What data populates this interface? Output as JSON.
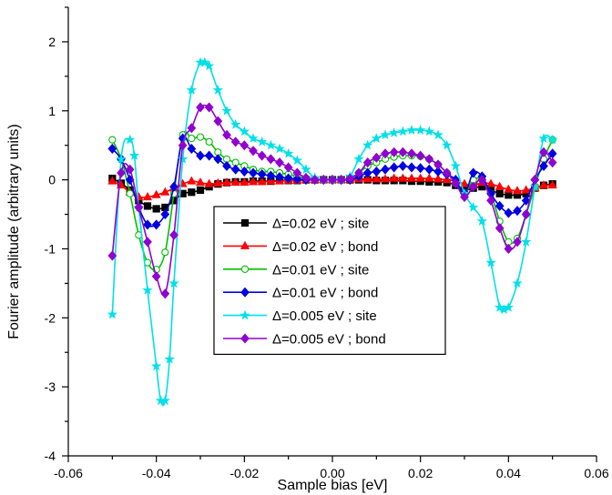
{
  "chart_data": {
    "type": "line",
    "title": "",
    "xlabel": "Sample bias [eV]",
    "ylabel": "Fourier amplitude (arbitrary units)",
    "xlim": [
      -0.06,
      0.06
    ],
    "ylim": [
      -4,
      2.5
    ],
    "xticks": [
      -0.06,
      -0.04,
      -0.02,
      0.0,
      0.02,
      0.04,
      0.06
    ],
    "xtick_labels": [
      "-0.06",
      "-0.04",
      "-0.02",
      "0.00",
      "0.02",
      "0.04",
      "0.06"
    ],
    "yticks": [
      -4,
      -3,
      -2,
      -1,
      0,
      1,
      2
    ],
    "ytick_labels": [
      "-4",
      "-3",
      "-2",
      "-1",
      "0",
      "1",
      "2"
    ],
    "grid": false,
    "legend_position": "bottom-center",
    "series": [
      {
        "name": "Δ=0.02 eV ; site",
        "color": "#000000",
        "marker": "square",
        "filled": true,
        "x": [
          -0.05,
          -0.048,
          -0.046,
          -0.044,
          -0.042,
          -0.04,
          -0.038,
          -0.036,
          -0.034,
          -0.032,
          -0.03,
          -0.028,
          -0.026,
          -0.024,
          -0.022,
          -0.02,
          -0.018,
          -0.016,
          -0.014,
          -0.012,
          -0.01,
          -0.008,
          -0.006,
          -0.004,
          -0.002,
          0.0,
          0.002,
          0.004,
          0.006,
          0.008,
          0.01,
          0.012,
          0.014,
          0.016,
          0.018,
          0.02,
          0.022,
          0.024,
          0.026,
          0.028,
          0.03,
          0.032,
          0.034,
          0.036,
          0.038,
          0.04,
          0.042,
          0.044,
          0.046,
          0.048,
          0.05
        ],
        "y": [
          0.02,
          -0.05,
          -0.15,
          -0.3,
          -0.38,
          -0.42,
          -0.4,
          -0.3,
          -0.2,
          -0.18,
          -0.15,
          -0.1,
          -0.06,
          -0.04,
          -0.03,
          -0.03,
          -0.02,
          -0.02,
          -0.02,
          -0.01,
          -0.01,
          -0.01,
          0.0,
          0.0,
          0.0,
          0.0,
          0.0,
          0.0,
          0.0,
          0.0,
          -0.01,
          -0.01,
          -0.01,
          -0.01,
          -0.02,
          -0.02,
          -0.03,
          -0.03,
          -0.04,
          -0.08,
          -0.15,
          -0.12,
          -0.1,
          -0.15,
          -0.2,
          -0.22,
          -0.22,
          -0.2,
          -0.12,
          -0.08,
          -0.06
        ]
      },
      {
        "name": "Δ=0.02 eV ; bond",
        "color": "#ff0000",
        "marker": "triangle",
        "filled": true,
        "x": [
          -0.05,
          -0.048,
          -0.046,
          -0.044,
          -0.042,
          -0.04,
          -0.038,
          -0.036,
          -0.034,
          -0.032,
          -0.03,
          -0.028,
          -0.026,
          -0.024,
          -0.022,
          -0.02,
          -0.018,
          -0.016,
          -0.014,
          -0.012,
          -0.01,
          -0.008,
          -0.006,
          -0.004,
          -0.002,
          0.0,
          0.002,
          0.004,
          0.006,
          0.008,
          0.01,
          0.012,
          0.014,
          0.016,
          0.018,
          0.02,
          0.022,
          0.024,
          0.026,
          0.028,
          0.03,
          0.032,
          0.034,
          0.036,
          0.038,
          0.04,
          0.042,
          0.044,
          0.046,
          0.048,
          0.05
        ],
        "y": [
          -0.02,
          -0.08,
          -0.18,
          -0.25,
          -0.25,
          -0.22,
          -0.18,
          -0.12,
          -0.06,
          -0.02,
          -0.04,
          -0.06,
          -0.05,
          -0.04,
          -0.04,
          -0.04,
          -0.03,
          -0.03,
          -0.02,
          -0.02,
          -0.01,
          -0.01,
          0.0,
          0.0,
          0.0,
          0.0,
          0.0,
          0.0,
          0.01,
          0.01,
          0.01,
          0.01,
          0.02,
          0.02,
          0.02,
          0.02,
          0.02,
          0.01,
          0.0,
          -0.02,
          -0.06,
          -0.08,
          -0.04,
          -0.06,
          -0.1,
          -0.14,
          -0.16,
          -0.15,
          -0.12,
          -0.08,
          -0.08
        ]
      },
      {
        "name": "Δ=0.01 eV ; site",
        "color": "#00c000",
        "marker": "circle",
        "filled": false,
        "x": [
          -0.05,
          -0.048,
          -0.046,
          -0.044,
          -0.042,
          -0.04,
          -0.038,
          -0.036,
          -0.034,
          -0.032,
          -0.03,
          -0.028,
          -0.026,
          -0.024,
          -0.022,
          -0.02,
          -0.018,
          -0.016,
          -0.014,
          -0.012,
          -0.01,
          -0.008,
          -0.006,
          -0.004,
          -0.002,
          0.0,
          0.002,
          0.004,
          0.006,
          0.008,
          0.01,
          0.012,
          0.014,
          0.016,
          0.018,
          0.02,
          0.022,
          0.024,
          0.026,
          0.028,
          0.03,
          0.032,
          0.034,
          0.036,
          0.038,
          0.04,
          0.042,
          0.044,
          0.046,
          0.048,
          0.05
        ],
        "y": [
          0.58,
          0.3,
          -0.2,
          -0.8,
          -1.2,
          -1.3,
          -1.05,
          -0.2,
          0.65,
          0.6,
          0.62,
          0.55,
          0.4,
          0.3,
          0.25,
          0.2,
          0.15,
          0.12,
          0.12,
          0.1,
          0.08,
          0.05,
          0.02,
          0.0,
          0.0,
          0.0,
          0.0,
          0.02,
          0.1,
          0.2,
          0.25,
          0.3,
          0.33,
          0.35,
          0.35,
          0.34,
          0.3,
          0.22,
          0.1,
          -0.05,
          -0.2,
          0.0,
          0.0,
          -0.2,
          -0.6,
          -0.9,
          -0.85,
          -0.5,
          -0.1,
          0.3,
          0.58
        ]
      },
      {
        "name": "Δ=0.01 eV ; bond",
        "color": "#0000e0",
        "marker": "diamond",
        "filled": true,
        "x": [
          -0.05,
          -0.048,
          -0.046,
          -0.044,
          -0.042,
          -0.04,
          -0.038,
          -0.036,
          -0.034,
          -0.032,
          -0.03,
          -0.028,
          -0.026,
          -0.024,
          -0.022,
          -0.02,
          -0.018,
          -0.016,
          -0.014,
          -0.012,
          -0.01,
          -0.008,
          -0.006,
          -0.004,
          -0.002,
          0.0,
          0.002,
          0.004,
          0.006,
          0.008,
          0.01,
          0.012,
          0.014,
          0.016,
          0.018,
          0.02,
          0.022,
          0.024,
          0.026,
          0.028,
          0.03,
          0.032,
          0.034,
          0.036,
          0.038,
          0.04,
          0.042,
          0.044,
          0.046,
          0.048,
          0.05
        ],
        "y": [
          0.45,
          0.3,
          0.0,
          -0.4,
          -0.65,
          -0.65,
          -0.5,
          -0.1,
          0.6,
          0.45,
          0.35,
          0.35,
          0.3,
          0.2,
          0.15,
          0.12,
          0.1,
          0.08,
          0.06,
          0.04,
          0.02,
          0.01,
          0.0,
          0.0,
          0.0,
          0.0,
          0.0,
          0.0,
          0.05,
          0.1,
          0.12,
          0.15,
          0.18,
          0.2,
          0.18,
          0.17,
          0.15,
          0.12,
          0.08,
          0.0,
          -0.2,
          0.1,
          0.05,
          -0.2,
          -0.38,
          -0.48,
          -0.45,
          -0.3,
          0.0,
          0.2,
          0.38
        ]
      },
      {
        "name": "Δ=0.005 eV ; site",
        "color": "#00e0e8",
        "marker": "star",
        "filled": true,
        "x": [
          -0.05,
          -0.048,
          -0.046,
          -0.045,
          -0.044,
          -0.042,
          -0.04,
          -0.039,
          -0.038,
          -0.037,
          -0.036,
          -0.034,
          -0.032,
          -0.03,
          -0.029,
          -0.028,
          -0.026,
          -0.024,
          -0.022,
          -0.02,
          -0.018,
          -0.016,
          -0.014,
          -0.012,
          -0.01,
          -0.008,
          -0.006,
          -0.004,
          -0.002,
          0.0,
          0.002,
          0.004,
          0.006,
          0.008,
          0.01,
          0.012,
          0.014,
          0.016,
          0.018,
          0.02,
          0.022,
          0.024,
          0.026,
          0.028,
          0.03,
          0.032,
          0.034,
          0.036,
          0.038,
          0.039,
          0.04,
          0.042,
          0.044,
          0.046,
          0.048,
          0.05
        ],
        "y": [
          -1.95,
          0.3,
          0.58,
          0.35,
          -0.4,
          -1.6,
          -2.7,
          -3.2,
          -3.2,
          -2.6,
          -1.5,
          0.3,
          1.3,
          1.7,
          1.7,
          1.65,
          1.3,
          1.0,
          0.8,
          0.7,
          0.6,
          0.55,
          0.5,
          0.45,
          0.38,
          0.28,
          0.15,
          0.03,
          0.0,
          0.0,
          0.0,
          0.05,
          0.3,
          0.5,
          0.6,
          0.65,
          0.68,
          0.7,
          0.72,
          0.72,
          0.7,
          0.65,
          0.5,
          0.2,
          -0.2,
          -0.4,
          -0.6,
          -1.2,
          -1.85,
          -1.88,
          -1.85,
          -1.5,
          -0.9,
          -0.1,
          0.6,
          0.58
        ]
      },
      {
        "name": "Δ=0.005 eV ; bond",
        "color": "#9000d0",
        "marker": "diamond",
        "filled": true,
        "x": [
          -0.05,
          -0.048,
          -0.046,
          -0.044,
          -0.042,
          -0.04,
          -0.038,
          -0.036,
          -0.034,
          -0.032,
          -0.03,
          -0.028,
          -0.026,
          -0.024,
          -0.022,
          -0.02,
          -0.018,
          -0.016,
          -0.014,
          -0.012,
          -0.01,
          -0.008,
          -0.006,
          -0.004,
          -0.002,
          0.0,
          0.002,
          0.004,
          0.006,
          0.008,
          0.01,
          0.012,
          0.014,
          0.016,
          0.018,
          0.02,
          0.022,
          0.024,
          0.026,
          0.028,
          0.03,
          0.032,
          0.034,
          0.036,
          0.038,
          0.04,
          0.042,
          0.044,
          0.046,
          0.048,
          0.05
        ],
        "y": [
          -1.1,
          0.1,
          0.15,
          -0.4,
          -0.9,
          -1.4,
          -1.65,
          -0.8,
          0.5,
          0.75,
          1.05,
          1.05,
          0.85,
          0.65,
          0.55,
          0.5,
          0.42,
          0.35,
          0.3,
          0.25,
          0.18,
          0.1,
          0.03,
          0.0,
          0.0,
          0.0,
          0.0,
          0.02,
          0.1,
          0.25,
          0.32,
          0.38,
          0.4,
          0.4,
          0.38,
          0.35,
          0.3,
          0.22,
          0.1,
          -0.05,
          -0.25,
          -0.1,
          0.0,
          -0.3,
          -0.7,
          -1.0,
          -0.9,
          -0.5,
          0.0,
          0.4,
          0.25
        ]
      }
    ]
  }
}
